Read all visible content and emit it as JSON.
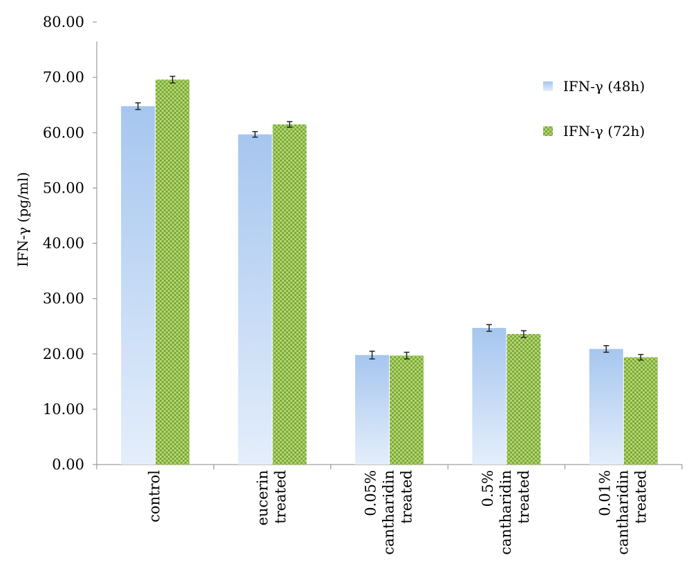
{
  "chart_data": {
    "type": "bar",
    "title": "",
    "xlabel": "",
    "ylabel": "IFN-γ (pg/ml)",
    "ylim": [
      0,
      80
    ],
    "yticks": [
      "0.00",
      "10.00",
      "20.00",
      "30.00",
      "40.00",
      "50.00",
      "60.00",
      "70.00",
      "80.00"
    ],
    "categories": [
      [
        "control"
      ],
      [
        "eucerin",
        "treated"
      ],
      [
        "0.05%",
        "cantharidin",
        "treated"
      ],
      [
        "0.5%",
        "cantharidin",
        "treated"
      ],
      [
        "0.01%",
        "cantharidin",
        "treated"
      ]
    ],
    "series": [
      {
        "name": "IFN-γ (48h)",
        "values": [
          64.8,
          59.7,
          19.8,
          24.7,
          20.9
        ],
        "errors": [
          0.6,
          0.5,
          0.7,
          0.6,
          0.6
        ],
        "color": "#a9c9ef"
      },
      {
        "name": "IFN-γ (72h)",
        "values": [
          69.6,
          61.5,
          19.7,
          23.6,
          19.4
        ],
        "errors": [
          0.6,
          0.5,
          0.6,
          0.6,
          0.5
        ],
        "color": "#8db84a"
      }
    ],
    "legend_position": "top-right",
    "grid": false
  }
}
